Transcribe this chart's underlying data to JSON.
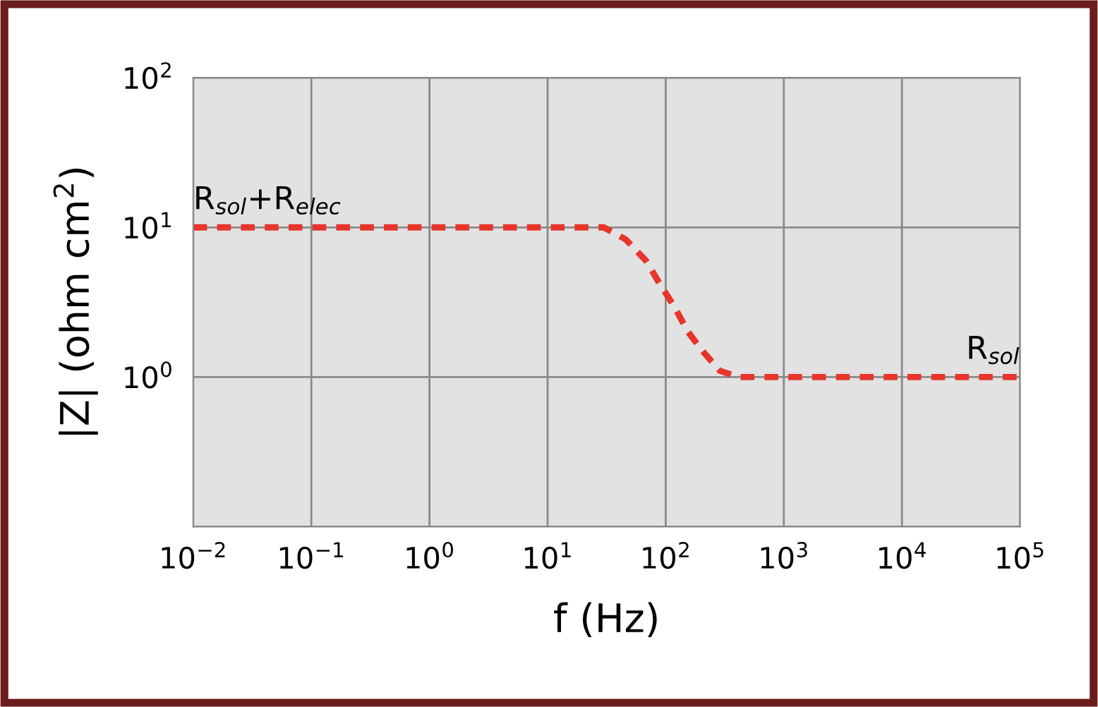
{
  "chart_data": {
    "type": "line",
    "xlabel": "f (Hz)",
    "ylabel": "|Z| (ohm cm$^{2}$)",
    "log": "xy",
    "xlim": [
      0.01,
      100000
    ],
    "ylim": [
      0.1,
      100
    ],
    "xticks": [
      {
        "value": 0.01,
        "label": "10$^{−2}$"
      },
      {
        "value": 0.1,
        "label": "10$^{−1}$"
      },
      {
        "value": 1,
        "label": "10$^{0}$"
      },
      {
        "value": 10,
        "label": "10$^{1}$"
      },
      {
        "value": 100,
        "label": "10$^{2}$"
      },
      {
        "value": 1000,
        "label": "10$^{3}$"
      },
      {
        "value": 10000,
        "label": "10$^{4}$"
      },
      {
        "value": 100000,
        "label": "10$^{5}$"
      }
    ],
    "yticks": [
      {
        "value": 0.1,
        "label": null
      },
      {
        "value": 1,
        "label": "10$^{0}$"
      },
      {
        "value": 10,
        "label": "10$^{1}$"
      },
      {
        "value": 100,
        "label": "10$^{2}$"
      }
    ],
    "grid": true,
    "marker": "none",
    "line_style": "dashed",
    "series": [
      {
        "color": "#e8352b",
        "x": [
          0.01,
          30,
          46,
          68,
          89,
          117,
          155,
          204,
          288,
          417,
          100000
        ],
        "values": [
          10,
          10,
          8.3,
          6.0,
          4.2,
          3.0,
          2.0,
          1.5,
          1.1,
          1.0,
          1.0
        ]
      }
    ],
    "annotations": [
      {
        "text": "R$_{sol}$+R$_{elec}$",
        "x": 0.01,
        "y": 10
      },
      {
        "text": "R$_{sol}$",
        "x": 100000,
        "y": 1
      }
    ]
  }
}
